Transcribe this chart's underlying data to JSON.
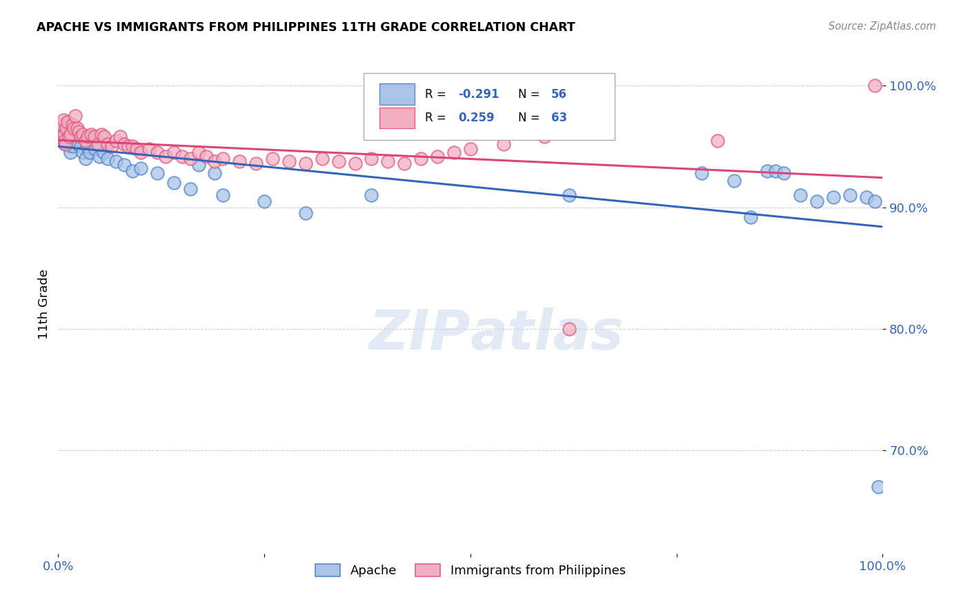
{
  "title": "APACHE VS IMMIGRANTS FROM PHILIPPINES 11TH GRADE CORRELATION CHART",
  "source": "Source: ZipAtlas.com",
  "ylabel": "11th Grade",
  "blue_R": -0.291,
  "blue_N": 56,
  "pink_R": 0.259,
  "pink_N": 63,
  "blue_label": "Apache",
  "pink_label": "Immigrants from Philippines",
  "blue_color": "#aac4e8",
  "pink_color": "#f2afc4",
  "blue_edge_color": "#5588cc",
  "pink_edge_color": "#e06080",
  "blue_line_color": "#3366bb",
  "pink_line_color": "#dd4477",
  "watermark_color": "#d0dcf0",
  "xlim": [
    0.0,
    1.0
  ],
  "ylim": [
    0.615,
    1.025
  ],
  "yticks": [
    0.7,
    0.8,
    0.9,
    1.0
  ],
  "ytick_labels": [
    "70.0%",
    "80.0%",
    "90.0%",
    "100.0%"
  ],
  "blue_x": [
    0.003,
    0.005,
    0.006,
    0.007,
    0.008,
    0.009,
    0.01,
    0.011,
    0.012,
    0.013,
    0.014,
    0.015,
    0.016,
    0.017,
    0.018,
    0.02,
    0.022,
    0.024,
    0.025,
    0.027,
    0.03,
    0.033,
    0.035,
    0.038,
    0.04,
    0.045,
    0.05,
    0.055,
    0.06,
    0.07,
    0.08,
    0.09,
    0.1,
    0.12,
    0.14,
    0.16,
    0.2,
    0.25,
    0.3,
    0.17,
    0.19,
    0.38,
    0.62,
    0.78,
    0.82,
    0.84,
    0.86,
    0.87,
    0.88,
    0.9,
    0.92,
    0.94,
    0.96,
    0.98,
    0.99,
    0.995
  ],
  "blue_y": [
    0.96,
    0.963,
    0.958,
    0.955,
    0.952,
    0.965,
    0.97,
    0.968,
    0.96,
    0.955,
    0.95,
    0.945,
    0.96,
    0.955,
    0.95,
    0.958,
    0.955,
    0.952,
    0.96,
    0.95,
    0.945,
    0.94,
    0.95,
    0.945,
    0.958,
    0.948,
    0.942,
    0.945,
    0.94,
    0.938,
    0.935,
    0.93,
    0.932,
    0.928,
    0.92,
    0.915,
    0.91,
    0.905,
    0.895,
    0.935,
    0.928,
    0.91,
    0.91,
    0.928,
    0.922,
    0.892,
    0.93,
    0.93,
    0.928,
    0.91,
    0.905,
    0.908,
    0.91,
    0.908,
    0.905,
    0.67
  ],
  "pink_x": [
    0.003,
    0.005,
    0.006,
    0.007,
    0.008,
    0.009,
    0.01,
    0.011,
    0.013,
    0.015,
    0.017,
    0.019,
    0.021,
    0.023,
    0.025,
    0.027,
    0.03,
    0.033,
    0.036,
    0.04,
    0.044,
    0.048,
    0.052,
    0.056,
    0.06,
    0.065,
    0.07,
    0.075,
    0.08,
    0.085,
    0.09,
    0.095,
    0.1,
    0.11,
    0.12,
    0.13,
    0.14,
    0.15,
    0.16,
    0.17,
    0.18,
    0.19,
    0.2,
    0.22,
    0.24,
    0.26,
    0.28,
    0.3,
    0.32,
    0.34,
    0.36,
    0.38,
    0.4,
    0.42,
    0.44,
    0.46,
    0.48,
    0.5,
    0.54,
    0.59,
    0.62,
    0.8,
    0.99
  ],
  "pink_y": [
    0.958,
    0.968,
    0.972,
    0.96,
    0.955,
    0.952,
    0.965,
    0.97,
    0.958,
    0.96,
    0.968,
    0.965,
    0.975,
    0.965,
    0.962,
    0.958,
    0.96,
    0.955,
    0.958,
    0.96,
    0.958,
    0.952,
    0.96,
    0.958,
    0.952,
    0.95,
    0.955,
    0.958,
    0.952,
    0.95,
    0.95,
    0.948,
    0.945,
    0.948,
    0.945,
    0.942,
    0.945,
    0.942,
    0.94,
    0.945,
    0.942,
    0.938,
    0.94,
    0.938,
    0.936,
    0.94,
    0.938,
    0.936,
    0.94,
    0.938,
    0.936,
    0.94,
    0.938,
    0.936,
    0.94,
    0.942,
    0.945,
    0.948,
    0.952,
    0.958,
    0.8,
    0.955,
    1.0
  ]
}
